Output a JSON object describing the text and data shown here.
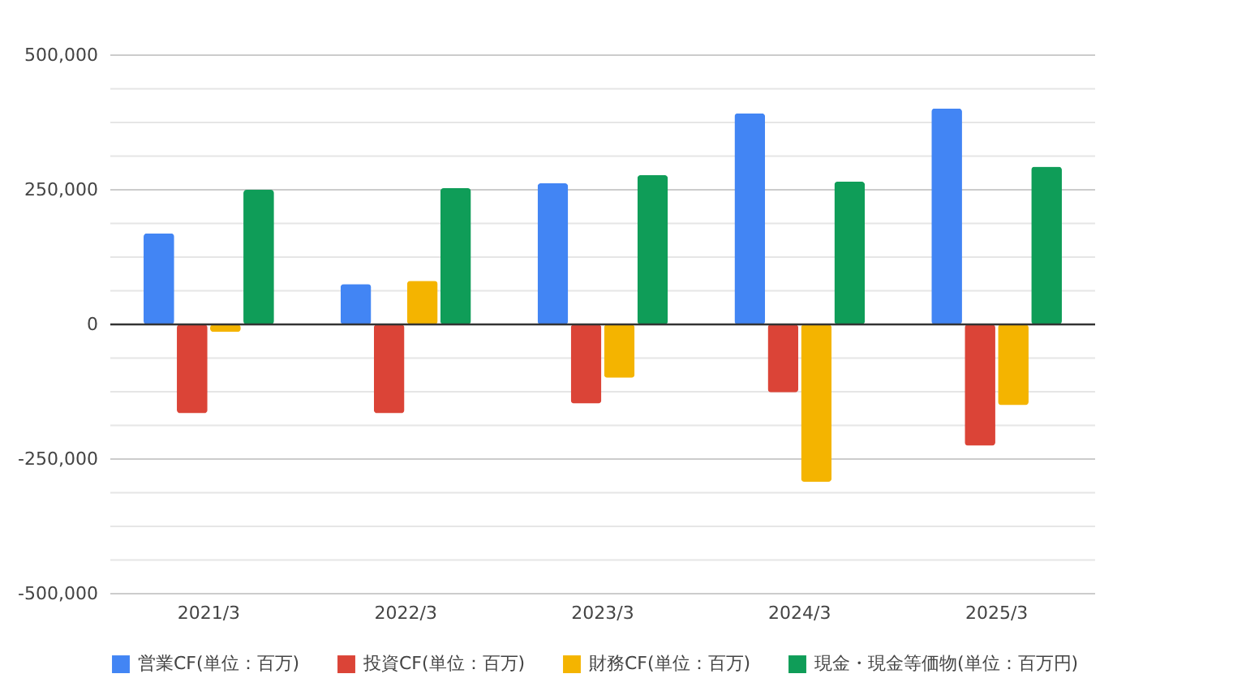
{
  "chart_data": {
    "type": "bar",
    "categories": [
      "2021/3",
      "2022/3",
      "2023/3",
      "2024/3",
      "2025/3"
    ],
    "series": [
      {
        "name": "営業CF(単位：百万)",
        "color": "#4285f4",
        "values": [
          169000,
          75000,
          262000,
          392000,
          401000
        ]
      },
      {
        "name": "投資CF(単位：百万)",
        "color": "#db4437",
        "values": [
          -165000,
          -165000,
          -147000,
          -126000,
          -225000
        ]
      },
      {
        "name": "財務CF(単位：百万)",
        "color": "#f4b400",
        "values": [
          -14000,
          81000,
          -99000,
          -292000,
          -150000
        ]
      },
      {
        "name": "現金・現金等価物(単位：百万円)",
        "color": "#0f9d58",
        "values": [
          250000,
          253000,
          277000,
          265000,
          293000
        ]
      }
    ],
    "ylim": [
      -500000,
      500000
    ],
    "yticks": [
      {
        "value": -500000,
        "label": "-500,000"
      },
      {
        "value": -437500,
        "label": null
      },
      {
        "value": -375000,
        "label": null
      },
      {
        "value": -312500,
        "label": null
      },
      {
        "value": -250000,
        "label": "-250,000"
      },
      {
        "value": -187500,
        "label": null
      },
      {
        "value": -125000,
        "label": null
      },
      {
        "value": -62500,
        "label": null
      },
      0,
      {
        "value": 62500,
        "label": null
      },
      {
        "value": 125000,
        "label": null
      },
      {
        "value": 187500,
        "label": null
      },
      {
        "value": 250000,
        "label": "250,000"
      },
      {
        "value": 312500,
        "label": null
      },
      {
        "value": 375000,
        "label": null
      },
      {
        "value": 437500,
        "label": null
      },
      {
        "value": 500000,
        "label": "500,000"
      }
    ],
    "ref_lines": [
      {
        "axis": "y",
        "value": 0,
        "color": "#333333"
      }
    ],
    "grid": "y",
    "legend": "bottom"
  }
}
